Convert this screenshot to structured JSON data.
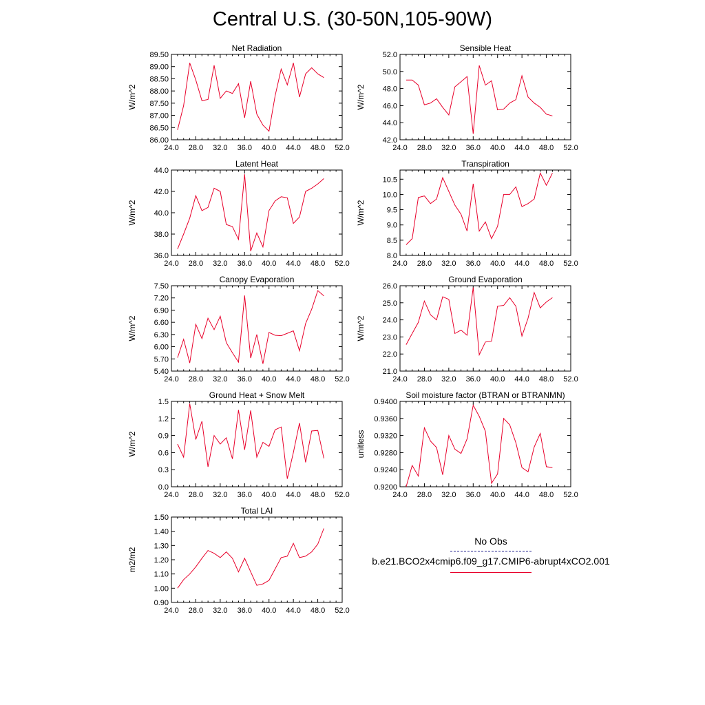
{
  "title": "Central U.S. (30-50N,105-90W)",
  "legend": {
    "obs_label": "No Obs",
    "case_label": "b.e21.BCO2x4cmip6.f09_g17.CMIP6-abrupt4xCO2.001",
    "obs_color": "#1a1a8c",
    "case_color": "#e8002a"
  },
  "chart_data": [
    {
      "type": "line",
      "title": "Net Radiation",
      "ylabel": "W/m^2",
      "xlim": [
        24,
        52
      ],
      "ylim": [
        86.0,
        89.5
      ],
      "xticks": [
        "24.0",
        "28.0",
        "32.0",
        "36.0",
        "40.0",
        "44.0",
        "48.0",
        "52.0"
      ],
      "yticks": [
        "86.00",
        "86.50",
        "87.00",
        "87.50",
        "88.00",
        "88.50",
        "89.00",
        "89.50"
      ],
      "series": [
        {
          "x": [
            25,
            26,
            27,
            28,
            29,
            30,
            31,
            32,
            33,
            34,
            35,
            36,
            37,
            38,
            39,
            40,
            41,
            42,
            43,
            44,
            45,
            46,
            47,
            48,
            49
          ],
          "y": [
            86.4,
            87.4,
            89.15,
            88.45,
            87.6,
            87.65,
            89.05,
            87.7,
            88.0,
            87.9,
            88.3,
            86.9,
            88.4,
            87.05,
            86.6,
            86.35,
            87.8,
            88.9,
            88.25,
            89.15,
            87.75,
            88.7,
            88.95,
            88.7,
            88.55
          ]
        }
      ]
    },
    {
      "type": "line",
      "title": "Sensible Heat",
      "ylabel": "W/m^2",
      "xlim": [
        24,
        52
      ],
      "ylim": [
        42.0,
        52.0
      ],
      "xticks": [
        "24.0",
        "28.0",
        "32.0",
        "36.0",
        "40.0",
        "44.0",
        "48.0",
        "52.0"
      ],
      "yticks": [
        "42.0",
        "44.0",
        "46.0",
        "48.0",
        "50.0",
        "52.0"
      ],
      "series": [
        {
          "x": [
            25,
            26,
            27,
            28,
            29,
            30,
            31,
            32,
            33,
            34,
            35,
            36,
            37,
            38,
            39,
            40,
            41,
            42,
            43,
            44,
            45,
            46,
            47,
            48,
            49
          ],
          "y": [
            49.0,
            49.0,
            48.4,
            46.1,
            46.3,
            46.8,
            45.8,
            44.9,
            48.2,
            48.8,
            49.4,
            42.7,
            50.7,
            48.4,
            48.9,
            45.5,
            45.6,
            46.3,
            46.7,
            49.5,
            47.0,
            46.3,
            45.8,
            45.0,
            44.8
          ]
        }
      ]
    },
    {
      "type": "line",
      "title": "Latent Heat",
      "ylabel": "W/m^2",
      "xlim": [
        24,
        52
      ],
      "ylim": [
        36.0,
        44.0
      ],
      "xticks": [
        "24.0",
        "28.0",
        "32.0",
        "36.0",
        "40.0",
        "44.0",
        "48.0",
        "52.0"
      ],
      "yticks": [
        "36.0",
        "38.0",
        "40.0",
        "42.0",
        "44.0"
      ],
      "series": [
        {
          "x": [
            25,
            26,
            27,
            28,
            29,
            30,
            31,
            32,
            33,
            34,
            35,
            36,
            37,
            38,
            39,
            40,
            41,
            42,
            43,
            44,
            45,
            46,
            47,
            48,
            49
          ],
          "y": [
            36.6,
            38.0,
            39.5,
            41.6,
            40.2,
            40.5,
            42.3,
            42.0,
            38.9,
            38.7,
            37.5,
            43.6,
            36.4,
            38.1,
            36.8,
            40.2,
            41.1,
            41.5,
            41.4,
            39.0,
            39.6,
            42.0,
            42.3,
            42.7,
            43.2
          ]
        }
      ]
    },
    {
      "type": "line",
      "title": "Transpiration",
      "ylabel": "W/m^2",
      "xlim": [
        24,
        52
      ],
      "ylim": [
        8.0,
        10.8
      ],
      "xticks": [
        "24.0",
        "28.0",
        "32.0",
        "36.0",
        "40.0",
        "44.0",
        "48.0",
        "52.0"
      ],
      "yticks": [
        "8.0",
        "8.5",
        "9.0",
        "9.5",
        "10.0",
        "10.5"
      ],
      "series": [
        {
          "x": [
            25,
            26,
            27,
            28,
            29,
            30,
            31,
            32,
            33,
            34,
            35,
            36,
            37,
            38,
            39,
            40,
            41,
            42,
            43,
            44,
            45,
            46,
            47,
            48,
            49
          ],
          "y": [
            8.35,
            8.55,
            9.9,
            9.95,
            9.7,
            9.85,
            10.55,
            10.1,
            9.65,
            9.35,
            8.8,
            10.35,
            8.8,
            9.1,
            8.55,
            8.95,
            10.0,
            10.0,
            10.25,
            9.6,
            9.7,
            9.85,
            10.7,
            10.3,
            10.7
          ]
        }
      ]
    },
    {
      "type": "line",
      "title": "Canopy Evaporation",
      "ylabel": "W/m^2",
      "xlim": [
        24,
        52
      ],
      "ylim": [
        5.4,
        7.5
      ],
      "xticks": [
        "24.0",
        "28.0",
        "32.0",
        "36.0",
        "40.0",
        "44.0",
        "48.0",
        "52.0"
      ],
      "yticks": [
        "5.40",
        "5.70",
        "6.00",
        "6.30",
        "6.60",
        "6.90",
        "7.20",
        "7.50"
      ],
      "series": [
        {
          "x": [
            25,
            26,
            27,
            28,
            29,
            30,
            31,
            32,
            33,
            34,
            35,
            36,
            37,
            38,
            39,
            40,
            41,
            42,
            43,
            44,
            45,
            46,
            47,
            48,
            49
          ],
          "y": [
            5.73,
            6.18,
            5.6,
            6.55,
            6.2,
            6.7,
            6.42,
            6.75,
            6.1,
            5.85,
            5.62,
            7.26,
            5.72,
            6.3,
            5.58,
            6.35,
            6.28,
            6.27,
            6.33,
            6.39,
            5.9,
            6.57,
            6.92,
            7.38,
            7.25
          ]
        }
      ]
    },
    {
      "type": "line",
      "title": "Ground Evaporation",
      "ylabel": "W/m^2",
      "xlim": [
        24,
        52
      ],
      "ylim": [
        21.0,
        26.0
      ],
      "xticks": [
        "24.0",
        "28.0",
        "32.0",
        "36.0",
        "40.0",
        "44.0",
        "48.0",
        "52.0"
      ],
      "yticks": [
        "21.0",
        "22.0",
        "23.0",
        "24.0",
        "25.0",
        "26.0"
      ],
      "series": [
        {
          "x": [
            25,
            26,
            27,
            28,
            29,
            30,
            31,
            32,
            33,
            34,
            35,
            36,
            37,
            38,
            39,
            40,
            41,
            42,
            43,
            44,
            45,
            46,
            47,
            48,
            49
          ],
          "y": [
            22.55,
            23.2,
            23.85,
            25.1,
            24.3,
            24.0,
            25.35,
            25.2,
            23.2,
            23.4,
            23.1,
            25.9,
            21.95,
            22.7,
            22.75,
            24.8,
            24.85,
            25.3,
            24.8,
            23.05,
            24.1,
            25.6,
            24.7,
            25.05,
            25.3
          ]
        }
      ]
    },
    {
      "type": "line",
      "title": "Ground Heat + Snow Melt",
      "ylabel": "W/m^2",
      "xlim": [
        24,
        52
      ],
      "ylim": [
        0.0,
        1.5
      ],
      "xticks": [
        "24.0",
        "28.0",
        "32.0",
        "36.0",
        "40.0",
        "44.0",
        "48.0",
        "52.0"
      ],
      "yticks": [
        "0.0",
        "0.3",
        "0.6",
        "0.9",
        "1.2",
        "1.5"
      ],
      "series": [
        {
          "x": [
            25,
            26,
            27,
            28,
            29,
            30,
            31,
            32,
            33,
            34,
            35,
            36,
            37,
            38,
            39,
            40,
            41,
            42,
            43,
            44,
            45,
            46,
            47,
            48,
            49
          ],
          "y": [
            0.75,
            0.52,
            1.46,
            0.83,
            1.15,
            0.35,
            0.9,
            0.75,
            0.86,
            0.49,
            1.35,
            0.65,
            1.34,
            0.52,
            0.78,
            0.71,
            1.0,
            1.05,
            0.14,
            0.6,
            1.12,
            0.43,
            0.98,
            0.99,
            0.5
          ]
        }
      ]
    },
    {
      "type": "line",
      "title": "Soil moisture factor (BTRAN or BTRANMN)",
      "ylabel": "unitless",
      "xlim": [
        24,
        52
      ],
      "ylim": [
        0.92,
        0.94
      ],
      "xticks": [
        "24.0",
        "28.0",
        "32.0",
        "36.0",
        "40.0",
        "44.0",
        "48.0",
        "52.0"
      ],
      "yticks": [
        "0.9200",
        "0.9240",
        "0.9280",
        "0.9320",
        "0.9360",
        "0.9400"
      ],
      "series": [
        {
          "x": [
            25,
            26,
            27,
            28,
            29,
            30,
            31,
            32,
            33,
            34,
            35,
            36,
            37,
            38,
            39,
            40,
            41,
            42,
            43,
            44,
            45,
            46,
            47,
            48,
            49
          ],
          "y": [
            0.92,
            0.925,
            0.9225,
            0.9338,
            0.9307,
            0.9292,
            0.9228,
            0.932,
            0.9288,
            0.9278,
            0.9312,
            0.9391,
            0.9365,
            0.933,
            0.9208,
            0.923,
            0.936,
            0.9345,
            0.9303,
            0.9245,
            0.9235,
            0.9293,
            0.9325,
            0.9247,
            0.9245
          ]
        }
      ]
    },
    {
      "type": "line",
      "title": "Total LAI",
      "ylabel": "m2/m2",
      "xlim": [
        24,
        52
      ],
      "ylim": [
        0.9,
        1.5
      ],
      "xticks": [
        "24.0",
        "28.0",
        "32.0",
        "36.0",
        "40.0",
        "44.0",
        "48.0",
        "52.0"
      ],
      "yticks": [
        "0.90",
        "1.00",
        "1.10",
        "1.20",
        "1.30",
        "1.40",
        "1.50"
      ],
      "series": [
        {
          "x": [
            25,
            26,
            27,
            28,
            29,
            30,
            31,
            32,
            33,
            34,
            35,
            36,
            37,
            38,
            39,
            40,
            41,
            42,
            43,
            44,
            45,
            46,
            47,
            48,
            49
          ],
          "y": [
            1.0,
            1.06,
            1.1,
            1.15,
            1.21,
            1.265,
            1.245,
            1.215,
            1.255,
            1.21,
            1.115,
            1.21,
            1.115,
            1.02,
            1.03,
            1.055,
            1.135,
            1.215,
            1.225,
            1.315,
            1.215,
            1.225,
            1.255,
            1.31,
            1.42
          ]
        }
      ]
    }
  ]
}
